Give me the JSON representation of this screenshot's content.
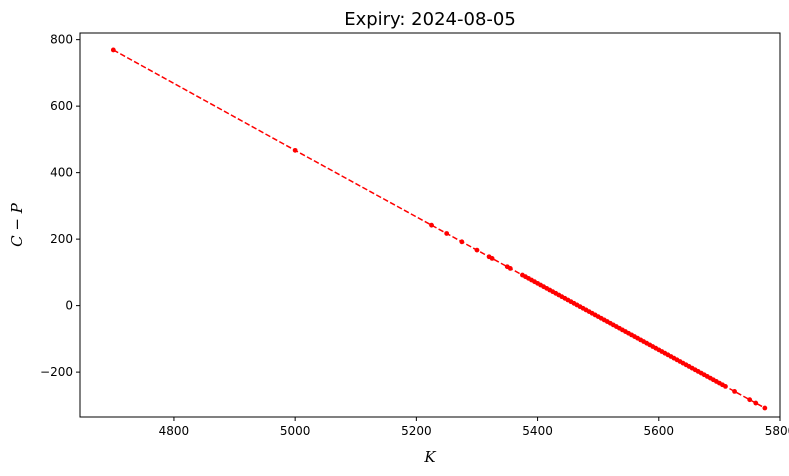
{
  "chart_data": {
    "type": "line",
    "title": "Expiry: 2024-08-05",
    "xlabel": "K",
    "ylabel": "C − P",
    "xlim": [
      4645,
      5800
    ],
    "ylim": [
      -335,
      820
    ],
    "xticks": [
      4800,
      5000,
      5200,
      5400,
      5600,
      5800
    ],
    "yticks": [
      -200,
      0,
      200,
      400,
      600,
      800
    ],
    "xtick_labels": [
      "4800",
      "5000",
      "5200",
      "5400",
      "5600",
      "5800"
    ],
    "ytick_labels": [
      "−200",
      "0",
      "200",
      "400",
      "600",
      "800"
    ],
    "grid": false,
    "series": [
      {
        "color": "#ff0000",
        "linestyle": "dashed",
        "marker": "point",
        "x": [
          4700,
          5000,
          5225,
          5250,
          5275,
          5300,
          5320,
          5325,
          5350,
          5355,
          5375,
          5380,
          5385,
          5390,
          5395,
          5400,
          5405,
          5410,
          5415,
          5420,
          5425,
          5430,
          5435,
          5440,
          5445,
          5450,
          5455,
          5460,
          5465,
          5470,
          5475,
          5480,
          5485,
          5490,
          5495,
          5500,
          5505,
          5510,
          5515,
          5520,
          5525,
          5530,
          5535,
          5540,
          5545,
          5550,
          5555,
          5560,
          5565,
          5570,
          5575,
          5580,
          5585,
          5590,
          5595,
          5600,
          5605,
          5610,
          5615,
          5620,
          5625,
          5630,
          5635,
          5640,
          5645,
          5650,
          5655,
          5660,
          5665,
          5670,
          5675,
          5680,
          5685,
          5690,
          5695,
          5700,
          5705,
          5710,
          5725,
          5750,
          5760,
          5775
        ],
        "y": [
          769,
          467,
          242,
          217,
          192,
          167,
          147,
          142,
          117,
          112,
          92,
          87,
          82,
          77,
          72,
          67,
          62,
          57,
          52,
          47,
          42,
          37,
          32,
          27,
          22,
          17,
          12,
          7,
          2,
          -3,
          -8,
          -13,
          -18,
          -23,
          -28,
          -33,
          -38,
          -43,
          -48,
          -53,
          -58,
          -63,
          -68,
          -73,
          -78,
          -83,
          -88,
          -93,
          -98,
          -103,
          -108,
          -113,
          -118,
          -123,
          -128,
          -133,
          -138,
          -143,
          -148,
          -153,
          -158,
          -163,
          -168,
          -173,
          -178,
          -183,
          -188,
          -193,
          -198,
          -203,
          -208,
          -213,
          -218,
          -223,
          -228,
          -233,
          -238,
          -243,
          -258,
          -283,
          -293,
          -308
        ]
      }
    ]
  }
}
